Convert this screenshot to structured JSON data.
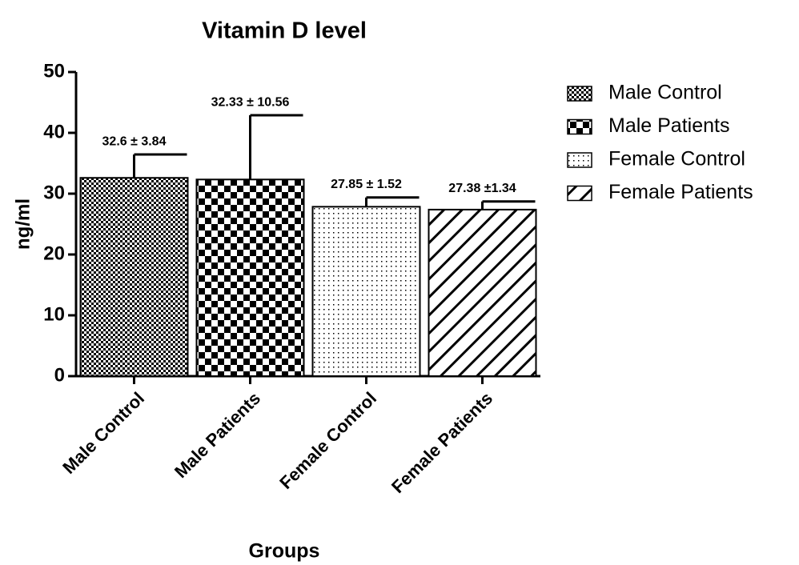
{
  "chart_data": {
    "type": "bar",
    "title": "Vitamin D level",
    "x_label": "Groups",
    "y_label": "ng/ml",
    "categories": [
      "Male Control",
      "Male Patients",
      "Female Control",
      "Female Patients"
    ],
    "values": [
      32.6,
      32.33,
      27.85,
      27.38
    ],
    "errors": [
      3.84,
      10.56,
      1.52,
      1.34
    ],
    "value_labels": [
      "32.6 ± 3.84",
      "32.33 ± 10.56",
      "27.85 ± 1.52",
      "27.38 ±1.34"
    ],
    "patterns": [
      "fine-checker",
      "checker",
      "dots",
      "hatch"
    ],
    "ylim": [
      0,
      50
    ],
    "yticks": [
      0,
      10,
      20,
      30,
      40,
      50
    ],
    "legend": "right"
  }
}
